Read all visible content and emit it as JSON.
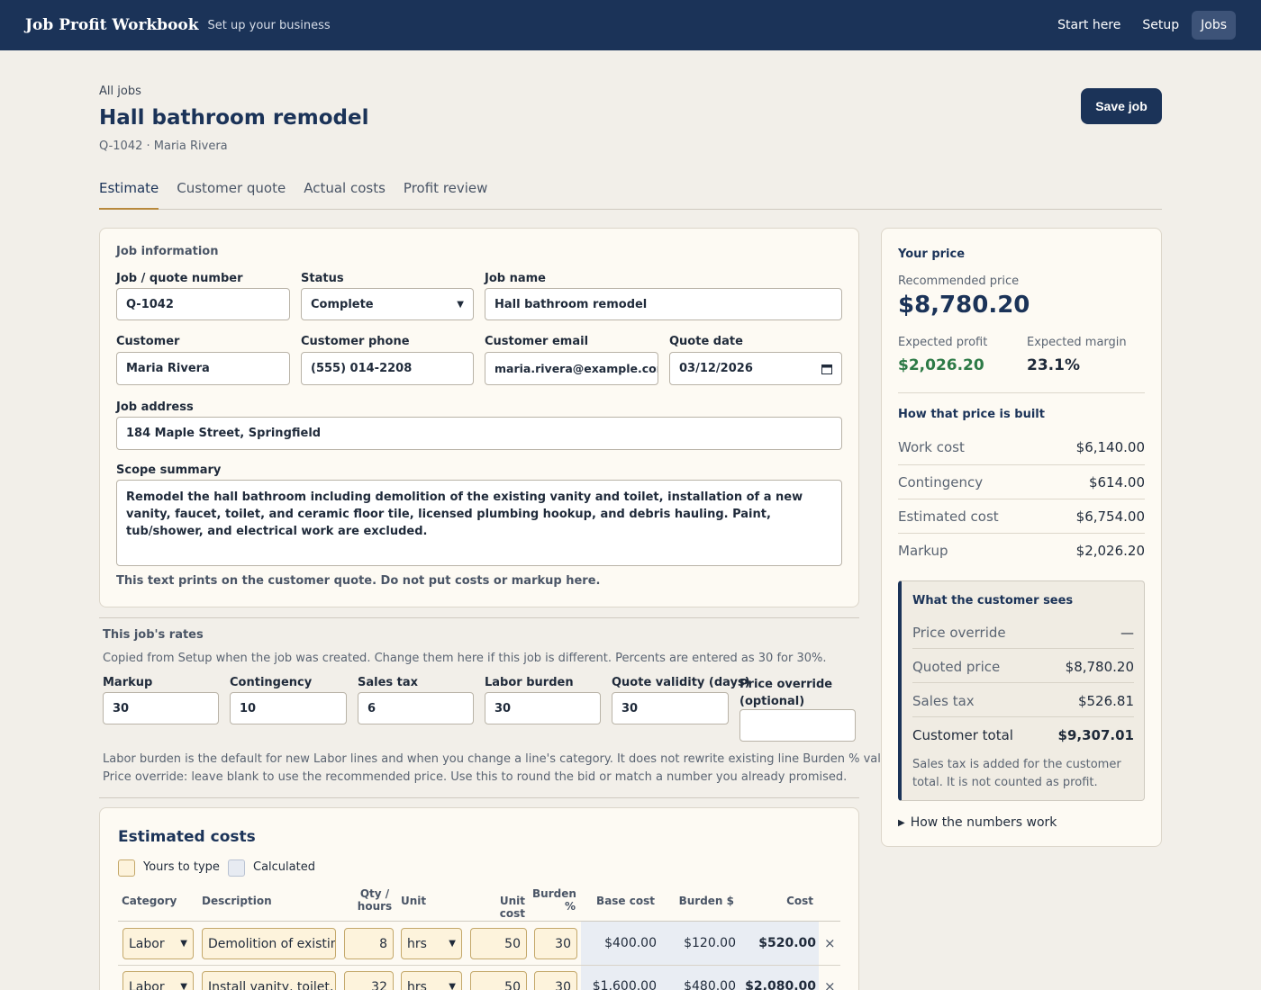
{
  "nav": {
    "brand": "Job Profit Workbook",
    "tagline": "Set up your business",
    "links": [
      "Start here",
      "Setup",
      "Jobs"
    ]
  },
  "header": {
    "breadcrumb": "All jobs",
    "title": "Hall bathroom remodel",
    "subtitle": "Q-1042 · Maria Rivera",
    "save_label": "Save job"
  },
  "tabs": [
    "Estimate",
    "Customer quote",
    "Actual costs",
    "Profit review"
  ],
  "job_info": {
    "section": "Job information",
    "quote_number_label": "Job / quote number",
    "quote_number": "Q-1042",
    "status_label": "Status",
    "status": "Complete",
    "job_name_label": "Job name",
    "job_name": "Hall bathroom remodel",
    "customer_label": "Customer",
    "customer": "Maria Rivera",
    "phone_label": "Customer phone",
    "phone": "(555) 014-2208",
    "email_label": "Customer email",
    "email": "maria.rivera@example.com",
    "date_label": "Quote date",
    "date": "03/12/2026",
    "address_label": "Job address",
    "address": "184 Maple Street, Springfield",
    "scope_label": "Scope summary",
    "scope": "Remodel the hall bathroom including demolition of the existing vanity and toilet, installation of a new vanity, faucet, toilet, and ceramic floor tile, licensed plumbing hookup, and debris hauling. Paint, tub/shower, and electrical work are excluded.",
    "scope_hint": "This text prints on the customer quote. Do not put costs or markup here."
  },
  "rates": {
    "section": "This job's rates",
    "intro": "Copied from Setup when the job was created. Change them here if this job is different. Percents are entered as 30 for 30%.",
    "markup_label": "Markup",
    "markup": "30",
    "contingency_label": "Contingency",
    "contingency": "10",
    "tax_label": "Sales tax",
    "tax": "6",
    "burden_label": "Labor burden",
    "burden": "30",
    "validity_label": "Quote validity (days)",
    "validity": "30",
    "override_label": "Price override (optional)",
    "override": "",
    "note1": "Labor burden is the default for new Labor lines and when you change a line's category. It does not rewrite existing line Burden % values.",
    "note2": "Price override: leave blank to use the recommended price. Use this to round the bid or match a number you already promised."
  },
  "estimated": {
    "title": "Estimated costs",
    "legend_type": "Yours to type",
    "legend_calc": "Calculated",
    "headers": {
      "category": "Category",
      "description": "Description",
      "qty": "Qty / hours",
      "unit": "Unit",
      "unit_cost": "Unit cost",
      "burden_pct": "Burden %",
      "base": "Base cost",
      "burden_usd": "Burden $",
      "cost": "Cost"
    },
    "rows": [
      {
        "category": "Labor",
        "description": "Demolition of existing vanity",
        "qty": "8",
        "unit": "hrs",
        "unit_cost": "50",
        "burden": "30",
        "base": "$400.00",
        "burden_usd": "$120.00",
        "cost": "$520.00"
      },
      {
        "category": "Labor",
        "description": "Install vanity, toilet, and tile",
        "qty": "32",
        "unit": "hrs",
        "unit_cost": "50",
        "burden": "30",
        "base": "$1,600.00",
        "burden_usd": "$480.00",
        "cost": "$2,080.00"
      }
    ]
  },
  "price": {
    "section": "Your price",
    "recommended_label": "Recommended price",
    "recommended": "$8,780.20",
    "profit_label": "Expected profit",
    "profit": "$2,026.20",
    "margin_label": "Expected margin",
    "margin": "23.1%",
    "built_title": "How that price is built",
    "built": [
      {
        "label": "Work cost",
        "value": "$6,140.00"
      },
      {
        "label": "Contingency",
        "value": "$614.00"
      },
      {
        "label": "Estimated cost",
        "value": "$6,754.00"
      },
      {
        "label": "Markup",
        "value": "$2,026.20"
      }
    ],
    "customer_title": "What the customer sees",
    "customer": [
      {
        "label": "Price override",
        "value": "—"
      },
      {
        "label": "Quoted price",
        "value": "$8,780.20"
      },
      {
        "label": "Sales tax",
        "value": "$526.81"
      },
      {
        "label": "Customer total",
        "value": "$9,307.01"
      }
    ],
    "tax_note": "Sales tax is added for the customer total. It is not counted as profit.",
    "details_label": "How the numbers work"
  },
  "colors": {
    "navy": "#1b3358",
    "accent": "#b8893c",
    "profit_green": "#2d7a46"
  },
  "icons": {
    "remove": "close-icon",
    "calendar": "calendar-icon",
    "select": "chevron-down-icon",
    "details": "triangle-right-icon"
  }
}
